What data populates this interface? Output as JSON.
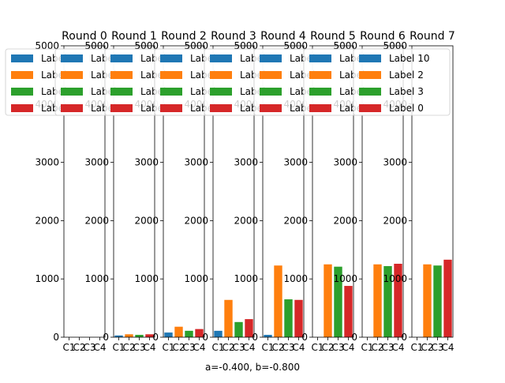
{
  "caption": "a=-0.400, b=-0.800",
  "colors": {
    "C1": "#1f77b4",
    "C2": "#ff7f0e",
    "C3": "#2ca02c",
    "C4": "#d62728"
  },
  "chart_data": [
    {
      "type": "bar",
      "title": "Round 0",
      "categories": [
        "C1",
        "C2",
        "C3",
        "C4"
      ],
      "values": [
        0,
        0,
        0,
        0
      ],
      "ylim": [
        0,
        5000
      ],
      "yticks": [
        0,
        1000,
        2000,
        3000,
        4000,
        5000
      ],
      "legend": [
        "Label 10",
        "Label 2",
        "Label 3",
        "Label 0"
      ],
      "legend_location": "upper right"
    },
    {
      "type": "bar",
      "title": "Round 1",
      "categories": [
        "C1",
        "C2",
        "C3",
        "C4"
      ],
      "values": [
        30,
        50,
        40,
        50
      ],
      "ylim": [
        0,
        5000
      ],
      "yticks": [
        0,
        1000,
        2000,
        3000,
        4000,
        5000
      ],
      "legend": [
        "Label 10",
        "Label 2",
        "Label 3",
        "Label 0"
      ],
      "legend_location": "upper right"
    },
    {
      "type": "bar",
      "title": "Round 2",
      "categories": [
        "C1",
        "C2",
        "C3",
        "C4"
      ],
      "values": [
        80,
        180,
        110,
        140
      ],
      "ylim": [
        0,
        5000
      ],
      "yticks": [
        0,
        1000,
        2000,
        3000,
        4000,
        5000
      ],
      "legend": [
        "Label 10",
        "Label 2",
        "Label 3",
        "Label 0"
      ],
      "legend_location": "upper right"
    },
    {
      "type": "bar",
      "title": "Round 3",
      "categories": [
        "C1",
        "C2",
        "C3",
        "C4"
      ],
      "values": [
        110,
        640,
        260,
        310
      ],
      "ylim": [
        0,
        5000
      ],
      "yticks": [
        0,
        1000,
        2000,
        3000,
        4000,
        5000
      ],
      "legend": [
        "Label 10",
        "Label 2",
        "Label 3",
        "Label 0"
      ],
      "legend_location": "upper right"
    },
    {
      "type": "bar",
      "title": "Round 4",
      "categories": [
        "C1",
        "C2",
        "C3",
        "C4"
      ],
      "values": [
        40,
        1230,
        650,
        640
      ],
      "ylim": [
        0,
        5000
      ],
      "yticks": [
        0,
        1000,
        2000,
        3000,
        4000,
        5000
      ],
      "legend": [
        "Label 10",
        "Label 2",
        "Label 3",
        "Label 0"
      ],
      "legend_location": "upper right"
    },
    {
      "type": "bar",
      "title": "Round 5",
      "categories": [
        "C1",
        "C2",
        "C3",
        "C4"
      ],
      "values": [
        0,
        1250,
        1210,
        880
      ],
      "ylim": [
        0,
        5000
      ],
      "yticks": [
        0,
        1000,
        2000,
        3000,
        4000,
        5000
      ],
      "legend": [
        "Label 10",
        "Label 2",
        "Label 3",
        "Label 0"
      ],
      "legend_location": "upper right"
    },
    {
      "type": "bar",
      "title": "Round 6",
      "categories": [
        "C1",
        "C2",
        "C3",
        "C4"
      ],
      "values": [
        0,
        1250,
        1220,
        1260
      ],
      "ylim": [
        0,
        5000
      ],
      "yticks": [
        0,
        1000,
        2000,
        3000,
        4000,
        5000
      ],
      "legend": [
        "Label 10",
        "Label 2",
        "Label 3",
        "Label 0"
      ],
      "legend_location": "upper right"
    },
    {
      "type": "bar",
      "title": "Round 7",
      "categories": [
        "C1",
        "C2",
        "C3",
        "C4"
      ],
      "values": [
        0,
        1250,
        1230,
        1330
      ],
      "ylim": [
        0,
        5000
      ],
      "yticks": [
        0,
        1000,
        2000,
        3000,
        4000,
        5000
      ],
      "legend": [
        "Label 10",
        "Label 2",
        "Label 3",
        "Label 0"
      ],
      "legend_location": "upper right"
    }
  ]
}
